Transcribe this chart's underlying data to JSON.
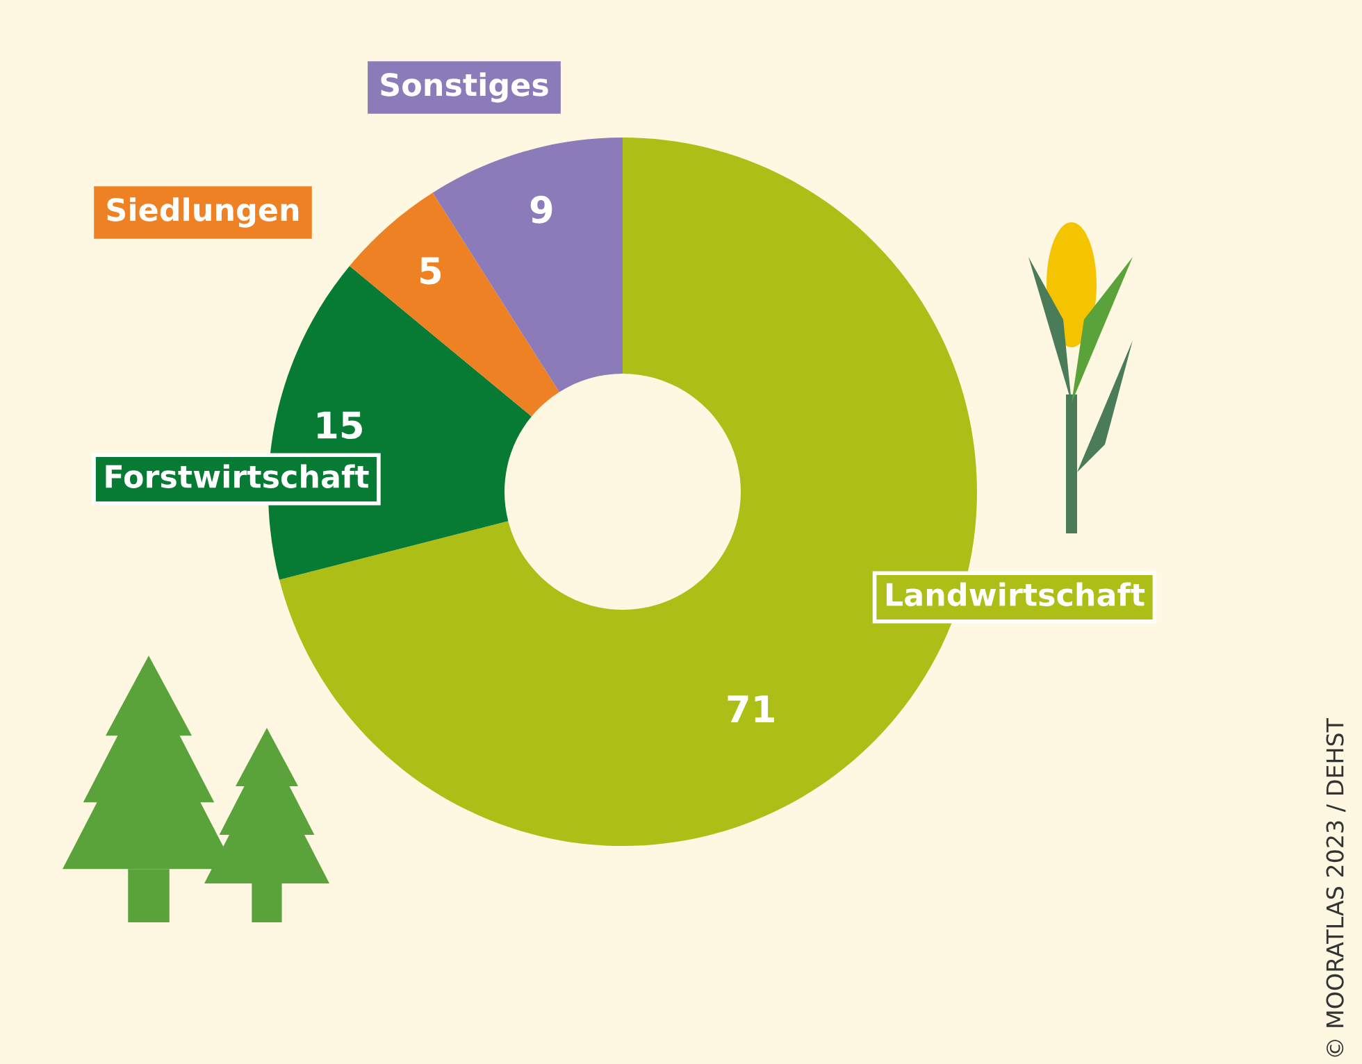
{
  "chart_data": {
    "type": "donut",
    "categories": [
      "Landwirtschaft",
      "Forstwirtschaft",
      "Siedlungen",
      "Sonstiges"
    ],
    "values": [
      71,
      15,
      5,
      9
    ],
    "colors": [
      "#adbf17",
      "#077a34",
      "#ef8125",
      "#8b7bb8"
    ],
    "data_labels": true,
    "legend": false,
    "annotations": [
      "© MOORATLAS 2023 / DEHST"
    ]
  }
}
